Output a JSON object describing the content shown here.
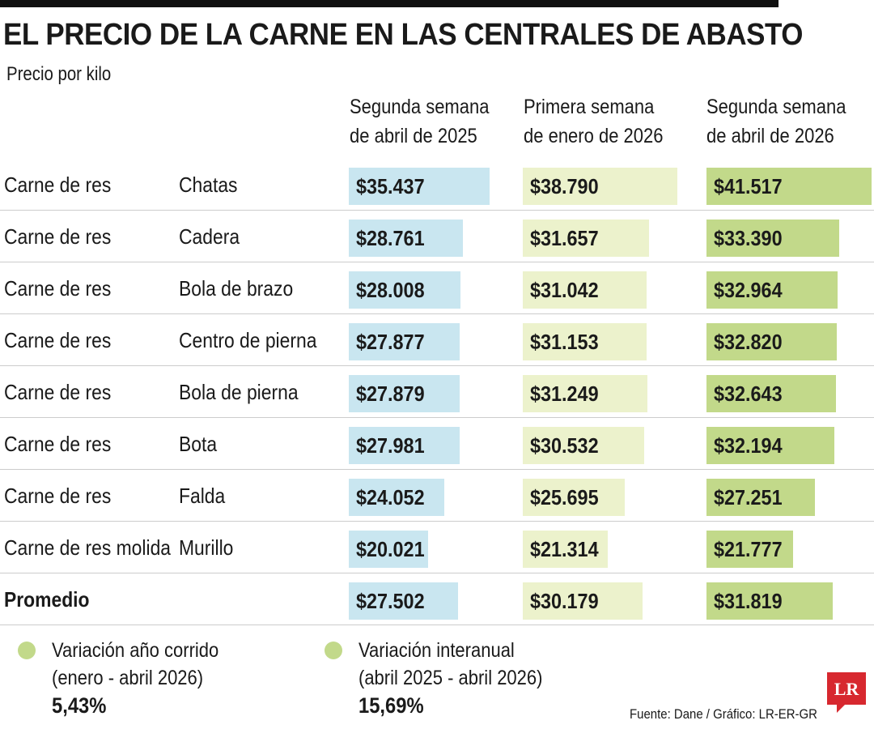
{
  "title": "EL PRECIO DE LA CARNE EN LAS CENTRALES DE ABASTO",
  "subtitle": "Precio por kilo",
  "chart_data": {
    "type": "table",
    "title": "EL PRECIO DE LA CARNE EN LAS CENTRALES DE ABASTO",
    "unit": "Precio por kilo",
    "columns": [
      "Segunda semana\nde abril de 2025",
      "Primera semana\nde enero de 2026",
      "Segunda semana\nde abril de 2026"
    ],
    "column_colors": [
      "#c9e6f0",
      "#ecf2cc",
      "#c2d98a"
    ],
    "rows": [
      {
        "product": "Carne de res",
        "cut": "Chatas",
        "values": [
          35437,
          38790,
          41517
        ],
        "labels": [
          "$35.437",
          "$38.790",
          "$41.517"
        ]
      },
      {
        "product": "Carne de res",
        "cut": "Cadera",
        "values": [
          28761,
          31657,
          33390
        ],
        "labels": [
          "$28.761",
          "$31.657",
          "$33.390"
        ]
      },
      {
        "product": "Carne de res",
        "cut": "Bola de brazo",
        "values": [
          28008,
          31042,
          32964
        ],
        "labels": [
          "$28.008",
          "$31.042",
          "$32.964"
        ]
      },
      {
        "product": "Carne de res",
        "cut": "Centro de pierna",
        "values": [
          27877,
          31153,
          32820
        ],
        "labels": [
          "$27.877",
          "$31.153",
          "$32.820"
        ]
      },
      {
        "product": "Carne de res",
        "cut": "Bola de pierna",
        "values": [
          27879,
          31249,
          32643
        ],
        "labels": [
          "$27.879",
          "$31.249",
          "$32.643"
        ]
      },
      {
        "product": "Carne de res",
        "cut": "Bota",
        "values": [
          27981,
          30532,
          32194
        ],
        "labels": [
          "$27.981",
          "$30.532",
          "$32.194"
        ]
      },
      {
        "product": "Carne de res",
        "cut": "Falda",
        "values": [
          24052,
          25695,
          27251
        ],
        "labels": [
          "$24.052",
          "$25.695",
          "$27.251"
        ]
      },
      {
        "product": "Carne de res molida",
        "cut": "Murillo",
        "values": [
          20021,
          21314,
          21777
        ],
        "labels": [
          "$20.021",
          "$21.314",
          "$21.777"
        ]
      },
      {
        "product": "Promedio",
        "cut": "",
        "values": [
          27502,
          30179,
          31819
        ],
        "labels": [
          "$27.502",
          "$30.179",
          "$31.819"
        ],
        "bold": true
      }
    ]
  },
  "legend": [
    {
      "label": "Variación año corrido",
      "period": "(enero - abril 2026)",
      "value": "5,43%"
    },
    {
      "label": "Variación interanual",
      "period": "(abril 2025 - abril 2026)",
      "value": "15,69%"
    }
  ],
  "source": "Fuente: Dane / Gráfico: LR-ER-GR",
  "logo_text": "LR",
  "logo_color": "#d7282f"
}
